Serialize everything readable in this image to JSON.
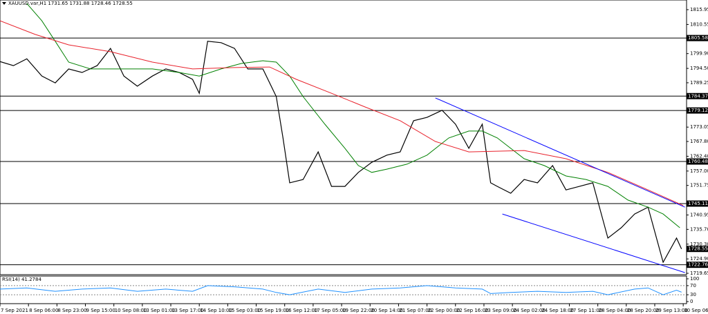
{
  "header": "XAUUSD.var,H1  1731.65 1731.88 1728.46 1728.55",
  "chart_data": [
    {
      "type": "line",
      "xlim": [
        0,
        410
      ],
      "ylim": [
        1719.15,
        1819.48
      ],
      "xticks": [
        {
          "value": 0,
          "label": "7 Sep 2021"
        },
        {
          "value": 17,
          "label": "8 Sep 06:00"
        },
        {
          "value": 34,
          "label": "8 Sep 23:00"
        },
        {
          "value": 51,
          "label": "9 Sep 15:00"
        },
        {
          "value": 68,
          "label": "10 Sep 08:00"
        },
        {
          "value": 85,
          "label": "13 Sep 01:00"
        },
        {
          "value": 102,
          "label": "13 Sep 17:00"
        },
        {
          "value": 119,
          "label": "14 Sep 10:00"
        },
        {
          "value": 136,
          "label": "15 Sep 03:00"
        },
        {
          "value": 153,
          "label": "15 Sep 19:00"
        },
        {
          "value": 170,
          "label": "16 Sep 12:00"
        },
        {
          "value": 187,
          "label": "17 Sep 05:00"
        },
        {
          "value": 204,
          "label": "19 Sep 22:00"
        },
        {
          "value": 221,
          "label": "20 Sep 14:00"
        },
        {
          "value": 238,
          "label": "21 Sep 07:00"
        },
        {
          "value": 255,
          "label": "22 Sep 00:00"
        },
        {
          "value": 272,
          "label": "22 Sep 16:00"
        },
        {
          "value": 289,
          "label": "23 Sep 09:00"
        },
        {
          "value": 306,
          "label": "24 Sep 02:00"
        },
        {
          "value": 323,
          "label": "24 Sep 18:00"
        },
        {
          "value": 340,
          "label": "27 Sep 11:00"
        },
        {
          "value": 357,
          "label": "28 Sep 04:00"
        },
        {
          "value": 374,
          "label": "28 Sep 20:00"
        },
        {
          "value": 391,
          "label": "29 Sep 13:00"
        },
        {
          "value": 408,
          "label": "30 Sep 06:00"
        }
      ],
      "yticks": [
        1815.95,
        1810.55,
        {
          "value": 1799.9,
          "label": "1799.90"
        },
        {
          "value": 1794.5,
          "label": "1794.50"
        },
        1789.25,
        1773.05,
        {
          "value": 1767.8,
          "label": "1767.80"
        },
        {
          "value": 1762.4,
          "label": "1762.40"
        },
        {
          "value": 1757,
          "label": "1757.00"
        },
        1751.75,
        1740.95,
        {
          "value": 1735.7,
          "label": "1735.70"
        },
        {
          "value": 1730.3,
          "label": "1730.30"
        },
        {
          "value": 1724.9,
          "label": "1724.90"
        },
        1719.65
      ],
      "levels": [
        1805.58,
        1784.37,
        1779.12,
        1760.48,
        1745.11,
        1722.76
      ],
      "last_price": 1728.55,
      "series": [
        {
          "color": "#000000",
          "x": [
            0,
            8,
            16,
            25,
            33,
            41,
            49,
            58,
            66,
            74,
            82,
            91,
            99,
            107,
            115,
            119,
            124,
            132,
            140,
            148,
            157,
            165,
            169,
            173,
            181,
            190,
            198,
            206,
            214,
            222,
            231,
            239,
            247,
            255,
            264,
            272,
            280,
            288,
            293,
            297,
            305,
            313,
            321,
            330,
            338,
            346,
            354,
            363,
            371,
            379,
            387,
            396,
            404,
            407
          ],
          "values": [
            1797,
            1795.5,
            1798,
            1791.7,
            1789.2,
            1794.3,
            1793,
            1795.5,
            1801.8,
            1791.7,
            1788,
            1791.7,
            1794.3,
            1793,
            1790.5,
            1785.4,
            1804.4,
            1803.9,
            1801.8,
            1794.3,
            1794.3,
            1784.2,
            1769.1,
            1752.7,
            1753.9,
            1764,
            1751.4,
            1751.4,
            1756.5,
            1760.2,
            1762.8,
            1764,
            1775.4,
            1776.6,
            1779.2,
            1774.1,
            1765.3,
            1774.1,
            1752.7,
            1751.4,
            1748.9,
            1753.9,
            1752.7,
            1759,
            1750.1,
            1751.4,
            1752.7,
            1732.5,
            1736.3,
            1741.3,
            1743.8,
            1723.7,
            1732.5,
            1728.55
          ]
        },
        {
          "color": "#008000",
          "x": [
            16,
            25,
            33,
            41,
            54,
            70,
            91,
            107,
            119,
            132,
            144,
            157,
            165,
            173,
            181,
            194,
            206,
            214,
            222,
            231,
            243,
            255,
            268,
            280,
            288,
            297,
            313,
            325,
            338,
            350,
            363,
            375,
            387,
            396,
            406
          ],
          "values": [
            1818.2,
            1811.9,
            1804.4,
            1796.8,
            1794.3,
            1794.3,
            1794.3,
            1793,
            1791.7,
            1794.3,
            1796.3,
            1797.3,
            1796.8,
            1791.7,
            1784.2,
            1774.1,
            1765.3,
            1759,
            1756.5,
            1757.7,
            1759.5,
            1762.8,
            1769.1,
            1771.6,
            1771.6,
            1769.1,
            1761.5,
            1759,
            1755.2,
            1753.9,
            1751.4,
            1746.4,
            1743.8,
            1741.3,
            1736.3
          ]
        },
        {
          "color": "#e8202a",
          "x": [
            0,
            21,
            41,
            66,
            91,
            115,
            140,
            161,
            177,
            198,
            218,
            239,
            260,
            280,
            313,
            338,
            363,
            387,
            408
          ],
          "values": [
            1811.9,
            1806.9,
            1803.1,
            1800.6,
            1796.8,
            1794.3,
            1794.8,
            1795,
            1790.5,
            1785.4,
            1780.4,
            1775.4,
            1767.8,
            1764,
            1764.5,
            1761.5,
            1756.5,
            1750.1,
            1744.4
          ]
        },
        {
          "color": "#0000ff",
          "x": [
            260,
            409
          ],
          "values": [
            1783.7,
            1743.8
          ]
        },
        {
          "color": "#0000ff",
          "x": [
            300,
            409
          ],
          "values": [
            1741.3,
            1719.9
          ]
        }
      ]
    },
    {
      "type": "line",
      "title": "RSI(14) 41.2784",
      "xlim": [
        0,
        410
      ],
      "ylim": [
        0,
        100
      ],
      "yticks": [
        100,
        70,
        30,
        0
      ],
      "grid": [
        70,
        30
      ],
      "series": [
        {
          "color": "#1e90ff",
          "x": [
            0,
            16,
            33,
            49,
            66,
            82,
            99,
            115,
            124,
            140,
            157,
            165,
            173,
            190,
            206,
            222,
            239,
            255,
            272,
            288,
            293,
            305,
            321,
            338,
            354,
            363,
            379,
            387,
            396,
            404,
            407
          ],
          "values": [
            55,
            60,
            45,
            55,
            60,
            45,
            55,
            45,
            70,
            65,
            55,
            40,
            30,
            55,
            40,
            55,
            60,
            70,
            60,
            55,
            35,
            40,
            45,
            40,
            45,
            30,
            55,
            60,
            30,
            50,
            41.28
          ]
        }
      ]
    }
  ]
}
